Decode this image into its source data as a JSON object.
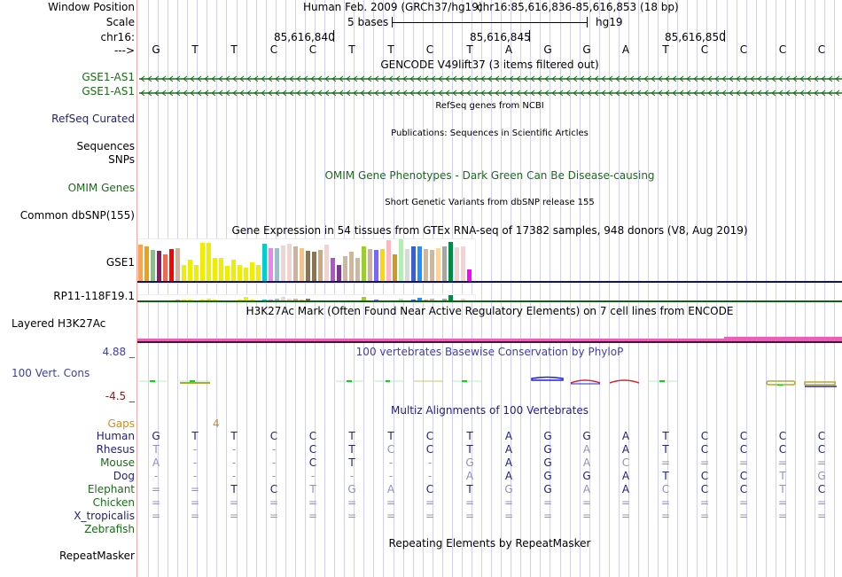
{
  "header": {
    "window_position_label": "Window Position",
    "assembly": "Human Feb. 2009 (GRCh37/hg19)",
    "position": "chr16:85,616,836-85,616,853 (18 bp)",
    "scale_label": "Scale",
    "scale_text": "5 bases",
    "scale_assembly": "hg19",
    "chrom_label": "chr16:",
    "ticks": [
      "85,616,840",
      "85,616,845",
      "85,616,850"
    ],
    "strand_label": "--->",
    "bases": [
      "G",
      "T",
      "T",
      "C",
      "C",
      "T",
      "T",
      "C",
      "T",
      "A",
      "G",
      "G",
      "A",
      "T",
      "C",
      "C",
      "C",
      "C"
    ]
  },
  "tracks": {
    "gencode": {
      "title": "GENCODE V49lift37 (3 items filtered out)",
      "genes": [
        "GSE1-AS1",
        "GSE1-AS1"
      ]
    },
    "refseq": {
      "label": "RefSeq Curated",
      "title": "RefSeq genes from NCBI"
    },
    "publications": {
      "label": "Sequences",
      "title": "Publications: Sequences in Scientific Articles"
    },
    "pub_snps": {
      "label": "SNPs"
    },
    "omim": {
      "label": "OMIM Genes",
      "title": "OMIM Gene Phenotypes - Dark Green Can Be Disease-causing"
    },
    "dbsnp": {
      "label": "Common dbSNP(155)",
      "title": "Short Genetic Variants from dbSNP release 155"
    },
    "gtex": {
      "title": "Gene Expression in 54 tissues from GTEx RNA-seq of 17382 samples, 948 donors (V8, Aug 2019)",
      "genes": [
        "GSE1",
        "RP11-118F19.1"
      ]
    },
    "h3k27ac": {
      "label": "Layered H3K27Ac",
      "title": "H3K27Ac Mark (Often Found Near Active Regulatory Elements) on 7 cell lines from ENCODE"
    },
    "phylop": {
      "label": "100 Vert. Cons",
      "title": "100 vertebrates Basewise Conservation by PhyloP",
      "max": "4.88 _",
      "min": "-4.5 _"
    },
    "multiz": {
      "title": "Multiz Alignments of 100 Vertebrates",
      "gaps_label": "Gaps",
      "gaps_value": "4",
      "species": [
        {
          "name": "Human",
          "color": "navy",
          "seq": [
            "G",
            "T",
            "T",
            "C",
            "C",
            "T",
            "T",
            "C",
            "T",
            "A",
            "G",
            "G",
            "A",
            "T",
            "C",
            "C",
            "C",
            "C"
          ],
          "light": [
            0,
            0,
            0,
            0,
            0,
            0,
            0,
            0,
            0,
            0,
            0,
            0,
            0,
            0,
            0,
            0,
            0,
            0
          ]
        },
        {
          "name": "Rhesus",
          "color": "navy",
          "seq": [
            "T",
            "-",
            "-",
            "-",
            "C",
            "T",
            "C",
            "C",
            "T",
            "A",
            "G",
            "A",
            "A",
            "T",
            "C",
            "C",
            "C",
            "C"
          ],
          "light": [
            1,
            1,
            1,
            1,
            0,
            0,
            1,
            0,
            0,
            0,
            0,
            1,
            0,
            0,
            0,
            0,
            0,
            0
          ]
        },
        {
          "name": "Mouse",
          "color": "green",
          "seq": [
            "A",
            "-",
            "-",
            "-",
            "C",
            "T",
            "-",
            "-",
            "G",
            "A",
            "G",
            "A",
            "C",
            "=",
            "=",
            "=",
            "=",
            "="
          ],
          "light": [
            1,
            1,
            1,
            1,
            0,
            0,
            1,
            1,
            1,
            0,
            0,
            1,
            1,
            1,
            1,
            1,
            1,
            1
          ]
        },
        {
          "name": "Dog",
          "color": "navy",
          "seq": [
            "-",
            "-",
            "-",
            "-",
            "-",
            "-",
            "-",
            "-",
            "A",
            "A",
            "G",
            "G",
            "A",
            "T",
            "C",
            "C",
            "T",
            "G"
          ],
          "light": [
            1,
            1,
            1,
            1,
            1,
            1,
            1,
            1,
            1,
            0,
            0,
            0,
            0,
            0,
            0,
            0,
            1,
            1
          ]
        },
        {
          "name": "Elephant",
          "color": "green",
          "seq": [
            "=",
            "=",
            "T",
            "C",
            "T",
            "G",
            "A",
            "C",
            "T",
            "G",
            "G",
            "A",
            "A",
            "C",
            "C",
            "C",
            "T",
            "C"
          ],
          "light": [
            1,
            1,
            0,
            0,
            1,
            1,
            1,
            0,
            0,
            1,
            0,
            1,
            0,
            1,
            0,
            0,
            1,
            0
          ]
        },
        {
          "name": "Chicken",
          "color": "green",
          "seq": [
            "=",
            "=",
            "=",
            "=",
            "=",
            "=",
            "=",
            "=",
            "=",
            "=",
            "=",
            "=",
            "=",
            "=",
            "=",
            "=",
            "=",
            "="
          ],
          "light": [
            1,
            1,
            1,
            1,
            1,
            1,
            1,
            1,
            1,
            1,
            1,
            1,
            1,
            1,
            1,
            1,
            1,
            1
          ]
        },
        {
          "name": "X_tropicalis",
          "color": "navy",
          "seq": [
            "=",
            "=",
            "=",
            "=",
            "=",
            "=",
            "=",
            "=",
            "=",
            "=",
            "=",
            "=",
            "=",
            "=",
            "=",
            "=",
            "=",
            "="
          ],
          "light": [
            1,
            1,
            1,
            1,
            1,
            1,
            1,
            1,
            1,
            1,
            1,
            1,
            1,
            1,
            1,
            1,
            1,
            1
          ]
        },
        {
          "name": "Zebrafish",
          "color": "green",
          "seq": [],
          "light": []
        }
      ]
    },
    "repeatmasker": {
      "label": "RepeatMasker",
      "title": "Repeating Elements by RepeatMasker"
    }
  },
  "chart_data": {
    "type": "bar",
    "title": "Gene Expression in 54 tissues from GTEx RNA-seq of 17382 samples, 948 donors (V8, Aug 2019)",
    "series": [
      {
        "name": "GSE1",
        "values": [
          0.88,
          0.84,
          0.74,
          0.72,
          0.64,
          0.76,
          0.78,
          0.38,
          0.5,
          0.38,
          0.92,
          0.92,
          0.56,
          0.56,
          0.36,
          0.5,
          0.38,
          0.32,
          0.44,
          0.38,
          0.9,
          0.78,
          0.78,
          0.86,
          0.9,
          0.84,
          0.78,
          0.72,
          0.7,
          0.74,
          0.88,
          0.56,
          0.38,
          0.6,
          0.7,
          0.56,
          0.82,
          0.76,
          0.74,
          0.76,
          0.98,
          0.64,
          1.0,
          0.76,
          0.84,
          0.84,
          0.76,
          0.74,
          0.78,
          0.84,
          0.94,
          0.8,
          0.82,
          0.28
        ],
        "colors": [
          "#f4a55a",
          "#f0a010",
          "#8fbc8f",
          "#8b1c62",
          "#ee6a50",
          "#ff0000",
          "#cdb29d",
          "#eeee00",
          "#eeee00",
          "#eeee00",
          "#eeee00",
          "#eeee00",
          "#eeee00",
          "#eeee00",
          "#eeee00",
          "#eeee00",
          "#eeee00",
          "#eeee00",
          "#eeee00",
          "#eeee00",
          "#00ced1",
          "#ee82ee",
          "#9abfcb",
          "#eed5d2",
          "#eed5d2",
          "#cdb29d",
          "#eec591",
          "#8b7355",
          "#8b7355",
          "#cdaa7d",
          "#eed5d2",
          "#b452cd",
          "#7a378b",
          "#cdb79e",
          "#cdb79e",
          "#cdb79e",
          "#9acd32",
          "#cdb29d",
          "#7b68ee",
          "#ffd700",
          "#ffb6c1",
          "#cd9b1d",
          "#b4eeb4",
          "#d9d9d9",
          "#3a5fcd",
          "#1e90ff",
          "#cdb79e",
          "#cdb79e",
          "#ffd39b",
          "#a6a6a6",
          "#008b45",
          "#eed5d2",
          "#eed5d2",
          "#ff00ff"
        ]
      },
      {
        "name": "RP11-118F19.1",
        "values": [
          0,
          0,
          0,
          0,
          0,
          0,
          0.15,
          0.15,
          0.1,
          0,
          0.1,
          0.3,
          0.2,
          0,
          0,
          0,
          0.15,
          0.55,
          0.15,
          0,
          0.1,
          0.1,
          0.25,
          0.55,
          0.25,
          0.3,
          0.1,
          0.25,
          0,
          0,
          0,
          0,
          0,
          0,
          0,
          0,
          0.5,
          0,
          0.15,
          0,
          0,
          0,
          0.35,
          0,
          0.2,
          0.4,
          0.2,
          0.25,
          0,
          0.35,
          0.8,
          0,
          0.25,
          0
        ]
      }
    ],
    "xlabel": "",
    "ylabel": "",
    "legend": "none"
  }
}
